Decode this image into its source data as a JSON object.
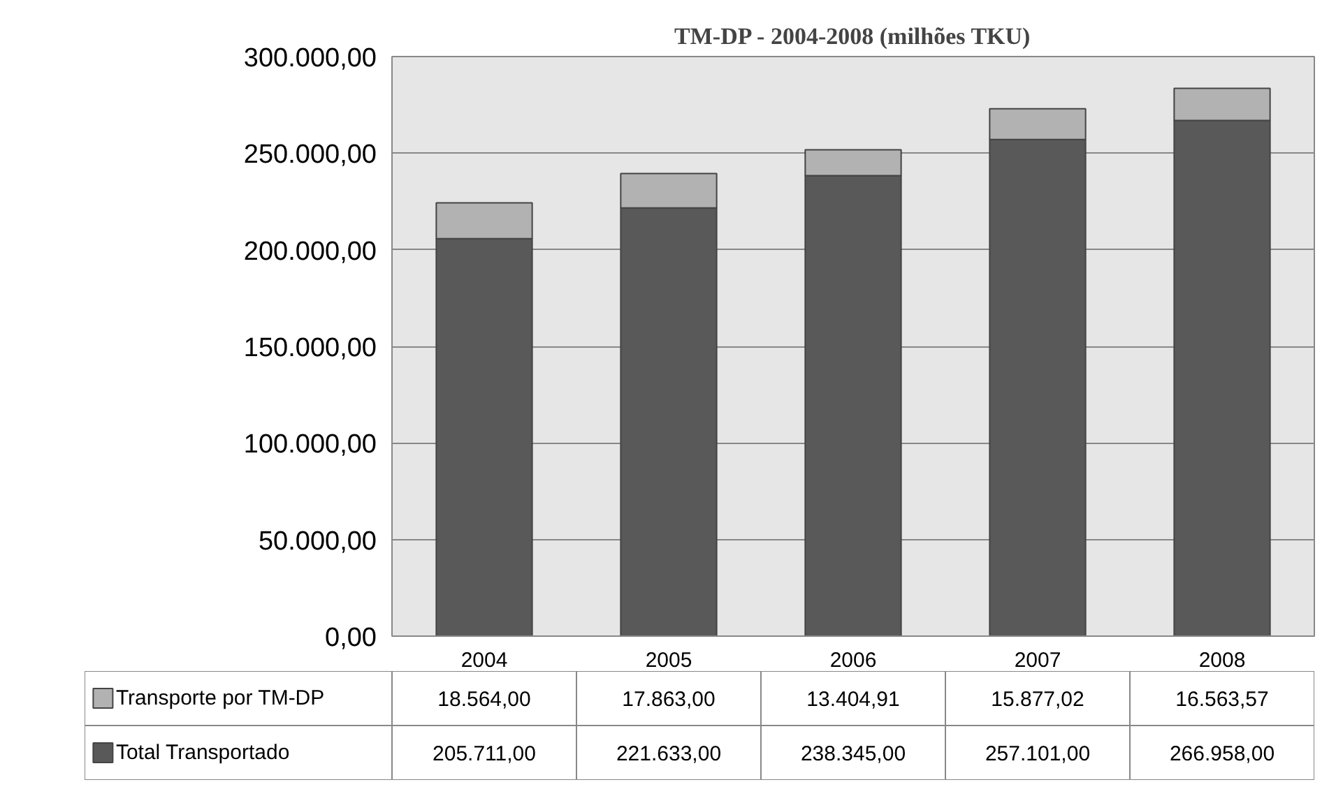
{
  "chart_data": {
    "type": "bar",
    "stacked": true,
    "title": "TM-DP - 2004-2008 (milhões TKU)",
    "categories": [
      "2004",
      "2005",
      "2006",
      "2007",
      "2008"
    ],
    "series": [
      {
        "name": "Total Transportado",
        "color": "#595959",
        "values": [
          205711.0,
          221633.0,
          238345.0,
          257101.0,
          266958.0
        ],
        "value_labels": [
          "205.711,00",
          "221.633,00",
          "238.345,00",
          "257.101,00",
          "266.958,00"
        ]
      },
      {
        "name": "Transporte por TM-DP",
        "color": "#b2b2b2",
        "values": [
          18564.0,
          17863.0,
          13404.91,
          15877.02,
          16563.57
        ],
        "value_labels": [
          "18.564,00",
          "17.863,00",
          "13.404,91",
          "15.877,02",
          "16.563,57"
        ]
      }
    ],
    "ylim": [
      0,
      300000
    ],
    "yticks": [
      {
        "value": 0,
        "label": "0,00"
      },
      {
        "value": 50000,
        "label": "50.000,00"
      },
      {
        "value": 100000,
        "label": "100.000,00"
      },
      {
        "value": 150000,
        "label": "150.000,00"
      },
      {
        "value": 200000,
        "label": "200.000,00"
      },
      {
        "value": 250000,
        "label": "250.000,00"
      },
      {
        "value": 300000,
        "label": "300.000,00"
      }
    ],
    "grid": "y",
    "legend": "bottom"
  }
}
